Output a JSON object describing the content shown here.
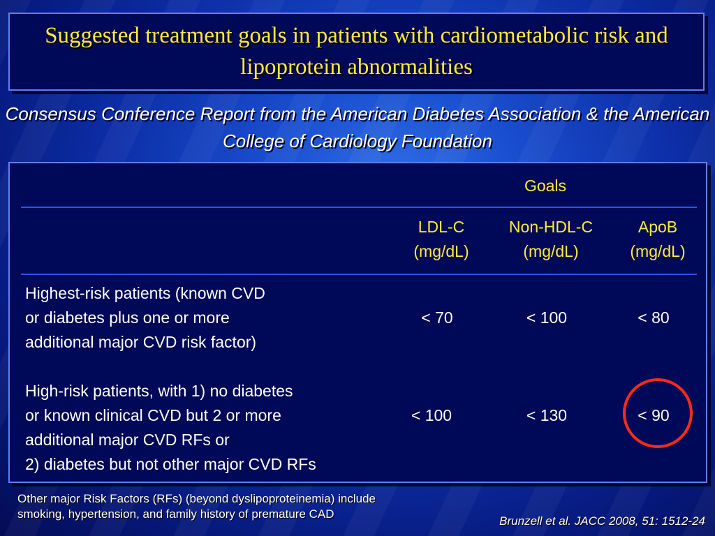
{
  "slide": {
    "title": "Suggested treatment goals in patients with cardiometabolic risk and lipoprotein abnormalities",
    "subtitle": "Consensus Conference Report from the American Diabetes Association & the American College of Cardiology Foundation"
  },
  "table": {
    "group_header": "Goals",
    "columns": [
      {
        "name": "LDL-C",
        "unit": "(mg/dL)"
      },
      {
        "name": "Non-HDL-C",
        "unit": "(mg/dL)"
      },
      {
        "name": "ApoB",
        "unit": "(mg/dL)"
      }
    ],
    "rows": [
      {
        "label": "Highest-risk patients (known CVD\nor diabetes plus one or more\nadditional major CVD risk factor)",
        "values": [
          "< 70",
          "< 100",
          "< 80"
        ]
      },
      {
        "label": "High-risk patients, with 1) no diabetes\nor known clinical CVD but 2 or more\nadditional major CVD RFs or\n2) diabetes but not other major CVD RFs",
        "values": [
          "< 100",
          "< 130",
          "< 90"
        ]
      }
    ]
  },
  "footnote": "Other major Risk Factors (RFs) (beyond dyslipoproteinemia) include\nsmoking, hypertension, and family history of premature CAD",
  "citation": "Brunzell et al. JACC 2008, 51: 1512-24",
  "colors": {
    "title_text": "#ffea3a",
    "header_text": "#ffea3a",
    "body_text": "#ffffff",
    "panel_bg": "#000957",
    "rule": "#2f4ef0",
    "highlight_circle": "#ff2a1a"
  }
}
